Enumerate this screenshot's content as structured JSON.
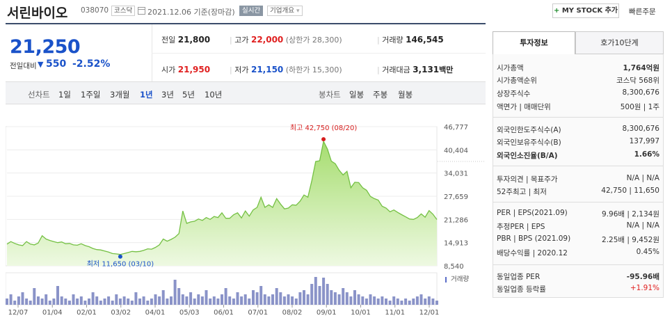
{
  "header": {
    "name": "서린바이오",
    "code": "038070",
    "market": "코스닥",
    "date": "2021.12.06",
    "basis": "기준(장마감)",
    "realtime": "실시간",
    "company_overview": "기업개요",
    "mystock_plus": "+",
    "mystock_label": "MY STOCK 추가",
    "quick_order": "빠른주문"
  },
  "summary": {
    "price": "21,250",
    "compare_label": "전일대비",
    "compare_arrow": "▼",
    "compare_diff": "550",
    "compare_rate": "-2.52%",
    "prev_label": "전일",
    "prev_value": "21,800",
    "high_label": "고가",
    "high_value": "22,000",
    "upper_limit": "(상한가 28,300)",
    "volume_label": "거래량",
    "volume_value": "146,545",
    "open_label": "시가",
    "open_value": "21,950",
    "low_label": "저가",
    "low_value": "21,150",
    "lower_limit": "(하한가 15,300)",
    "amount_label": "거래대금",
    "amount_value": "3,131",
    "amount_unit": "백만"
  },
  "tabs": {
    "line_chart": "선차트",
    "periods": [
      "1일",
      "1주일",
      "3개월",
      "1년",
      "3년",
      "5년",
      "10년"
    ],
    "selected": "1년",
    "candle_chart": "봉차트",
    "candle_periods": [
      "일봉",
      "주봉",
      "월봉"
    ]
  },
  "chart_data": {
    "type": "area",
    "yticks": [
      "46,777",
      "40,404",
      "34,031",
      "27,659",
      "21,286",
      "14,913",
      "8,540"
    ],
    "ylim": [
      8540,
      46777
    ],
    "xticks": [
      "12/07",
      "01/04",
      "02/01",
      "03/02",
      "04/01",
      "05/03",
      "06/01",
      "07/01",
      "08/02",
      "09/01",
      "10/01",
      "11/01",
      "12/01"
    ],
    "high_annotation": "최고 42,750 (08/20)",
    "low_annotation": "최저 11,650 (03/10)",
    "volume_label": "거래량",
    "series": [
      {
        "values": [
          14500,
          15200,
          14700,
          14300,
          14100,
          15200,
          14500,
          14300,
          14800,
          16800,
          15900,
          15500,
          15200,
          14900,
          15100,
          14600,
          14700,
          14300,
          14200,
          14600,
          14100,
          13800,
          13300,
          13000,
          12900,
          12600,
          12300,
          11900,
          11800,
          11650,
          11900,
          12200,
          12500,
          12400,
          12500,
          12800,
          13200,
          13100,
          13600,
          14300,
          15900,
          15300,
          15800,
          16400,
          17400,
          23600,
          20200,
          20600,
          20800,
          21400,
          21000,
          21800,
          21300,
          22100,
          21800,
          23100,
          21600,
          21600,
          22600,
          23100,
          21700,
          23600,
          22200,
          23900,
          24600,
          27400,
          24600,
          25300,
          24600,
          27000,
          25500,
          24200,
          24400,
          25300,
          25200,
          26300,
          28000,
          27400,
          31900,
          37200,
          37400,
          42750,
          40600,
          37300,
          36600,
          34800,
          33500,
          34500,
          30000,
          31500,
          31400,
          30000,
          29300,
          27600,
          27000,
          26600,
          24900,
          24400,
          23400,
          23900,
          23200,
          22600,
          22000,
          21400,
          21300,
          21800,
          22800,
          21900,
          23700,
          22700,
          21250
        ]
      }
    ]
  },
  "info": {
    "tab_invest": "투자정보",
    "tab_hoga": "호가10단계",
    "rows1": [
      {
        "k": "시가총액",
        "v": "1,764억원"
      },
      {
        "k": "시가총액순위",
        "v": "코스닥 568위"
      },
      {
        "k": "상장주식수",
        "v": "8,300,676"
      },
      {
        "k": "액면가 | 매매단위",
        "v": "500원 | 1주"
      }
    ],
    "rows2": [
      {
        "k": "외국인한도주식수(A)",
        "v": "8,300,676"
      },
      {
        "k": "외국인보유주식수(B)",
        "v": "137,997"
      },
      {
        "k": "외국인소진율(B/A)",
        "v": "1.66%"
      }
    ],
    "rows3": [
      {
        "k": "투자의견 | 목표주가",
        "v": "N/A | N/A"
      },
      {
        "k": "52주최고 | 최저",
        "v": "42,750 | 11,650"
      }
    ],
    "rows4": [
      {
        "k": "PER | EPS(2021.09)",
        "v": "9.96배 | 2,134원"
      },
      {
        "k": "추정PER | EPS",
        "v": "N/A | N/A"
      },
      {
        "k": "PBR | BPS (2021.09)",
        "v": "2.25배 | 9,452원"
      },
      {
        "k": "배당수익률 | 2020.12",
        "v": "0.45%"
      }
    ],
    "rows5": [
      {
        "k": "동일업종 PER",
        "v": "-95.96배"
      },
      {
        "k": "동일업종 등락률",
        "v": "+1.91%"
      }
    ]
  }
}
